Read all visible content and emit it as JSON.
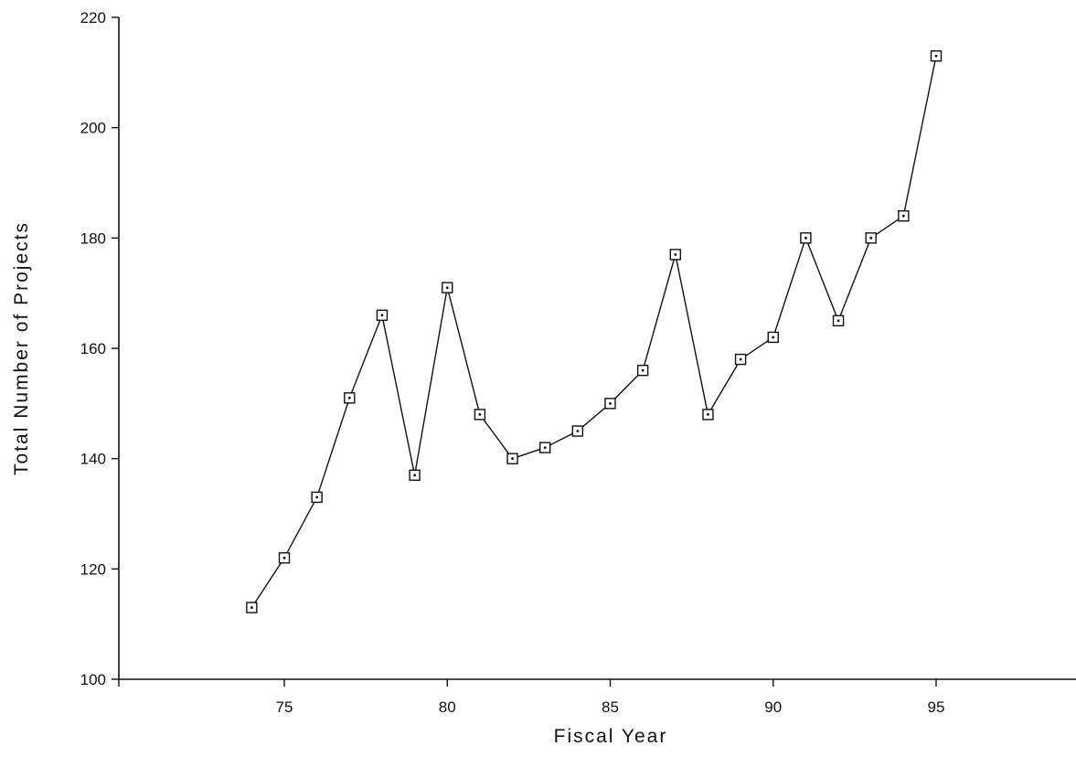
{
  "chart_data": {
    "type": "line",
    "title": "",
    "xlabel": "Fiscal Year",
    "ylabel": "Total Number of Projects",
    "xlim": [
      70,
      99
    ],
    "ylim": [
      100,
      220
    ],
    "xticks": [
      75,
      80,
      85,
      90,
      95
    ],
    "xtick_labels": [
      "75",
      "80",
      "85",
      "90",
      "95"
    ],
    "yticks": [
      100,
      120,
      140,
      160,
      180,
      200,
      220
    ],
    "ytick_labels": [
      "100",
      "120",
      "140",
      "160",
      "180",
      "200",
      "220"
    ],
    "grid": false,
    "legend": "none",
    "marker": "dotted-square",
    "series": [
      {
        "x": [
          74,
          75,
          76,
          77,
          78,
          79,
          80,
          81,
          82,
          83,
          84,
          85,
          86,
          87,
          88,
          89,
          90,
          91,
          92,
          93,
          94,
          95
        ],
        "values": [
          113,
          122,
          133,
          151,
          166,
          137,
          171,
          148,
          140,
          142,
          145,
          150,
          156,
          177,
          148,
          158,
          162,
          180,
          165,
          180,
          184,
          213
        ]
      }
    ]
  }
}
